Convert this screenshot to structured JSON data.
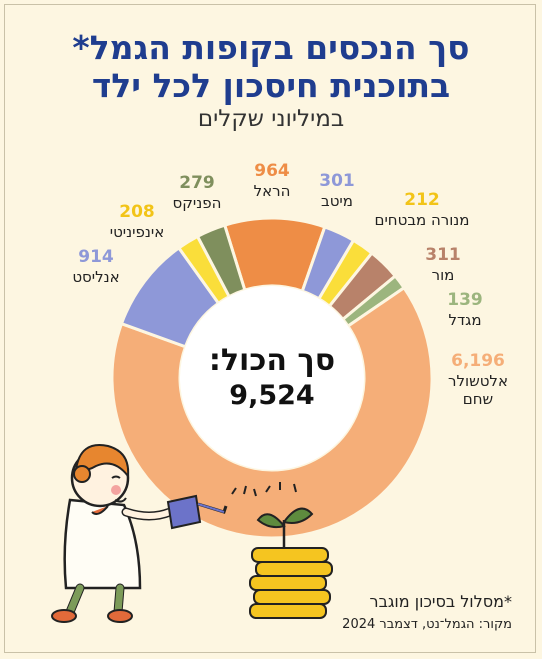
{
  "title_line1": "סך הנכסים בקופות הגמל*",
  "title_line2": "בתוכנית חיסכון לכל ילד",
  "subtitle": "במיליוני שקלים",
  "total": {
    "label": "סך הכול:",
    "value": "9,524"
  },
  "footnote": "*מסלול בסיכון מוגבר",
  "source": "מקור: הגמל־נט, דצמבר 2024",
  "chart_data": {
    "type": "pie",
    "title": "סך הנכסים בקופות הגמל*",
    "unit": "במיליוני שקלים",
    "total": 9524,
    "series": [
      {
        "name": "הראל",
        "value": 964,
        "value_label": "964",
        "color": "#ee8d46"
      },
      {
        "name": "מיטב",
        "value": 301,
        "value_label": "301",
        "color": "#8e98d8"
      },
      {
        "name": "מנורה מבטחים",
        "value": 212,
        "value_label": "212",
        "color": "#fade3a"
      },
      {
        "name": "מור",
        "value": 311,
        "value_label": "311",
        "color": "#b8826a"
      },
      {
        "name": "מגדל",
        "value": 139,
        "value_label": "139",
        "color": "#9cb57e"
      },
      {
        "name": "אלטשולר שחם",
        "value": 6196,
        "value_label": "6,196",
        "color": "#f5ae78"
      },
      {
        "name": "אנליסט",
        "value": 914,
        "value_label": "914",
        "color": "#8e98d8"
      },
      {
        "name": "אינפיניטי",
        "value": 208,
        "value_label": "208",
        "color": "#fade3a"
      },
      {
        "name": "הפניקס",
        "value": 279,
        "value_label": "279",
        "color": "#7f8f5d"
      }
    ],
    "label_colors": {
      "הראל": "#ee8d46",
      "מיטב": "#8e98d8",
      "מנורה מבטחים": "#f2c418",
      "מור": "#b8826a",
      "מגדל": "#9cb57e",
      "אלטשולר שחם": "#f5ae78",
      "אנליסט": "#8e98d8",
      "אינפיניטי": "#f2c418",
      "הפניקס": "#7f8f5d"
    }
  },
  "colors": {
    "title": "#1f3d8f",
    "background": "#fdf6e1"
  },
  "icons": [
    "girl-illustration",
    "watering-can-icon",
    "coin-stack-icon",
    "sprout-icon"
  ]
}
